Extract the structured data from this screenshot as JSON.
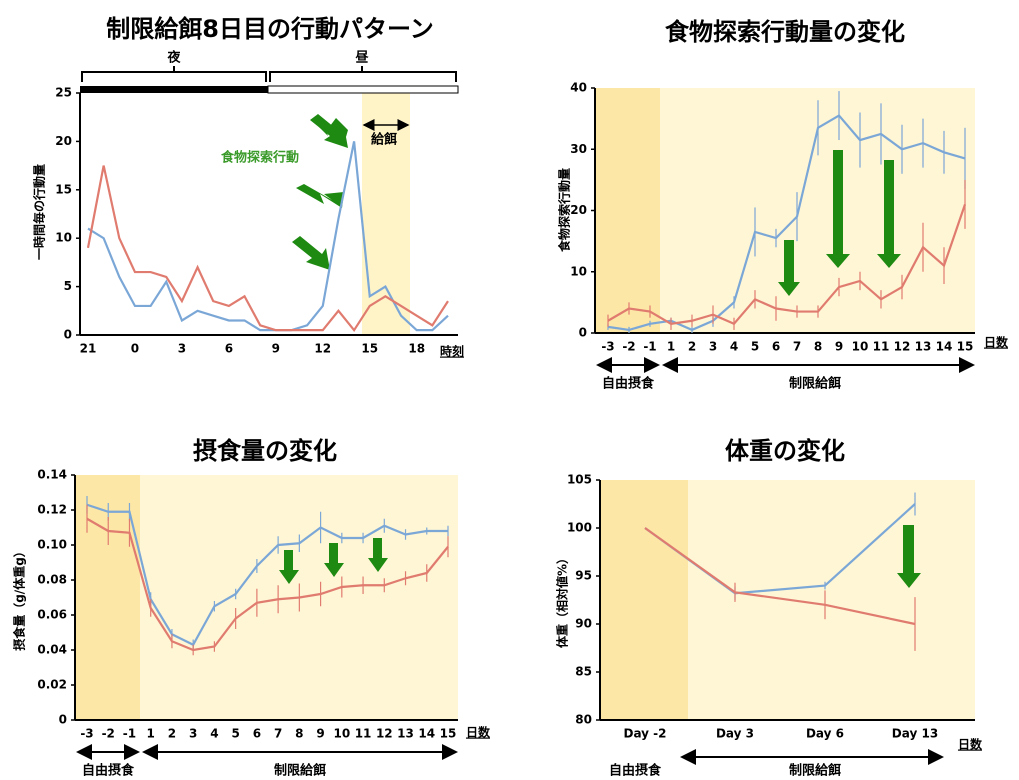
{
  "chart_data": [
    {
      "type": "line",
      "title": "制限給餌8日目の行動パターン",
      "ylabel": "一時間毎の行動量",
      "xlabel": "時刻",
      "categories": [
        "21",
        null,
        null,
        "0",
        null,
        null,
        "3",
        null,
        null,
        "6",
        null,
        null,
        "9",
        null,
        null,
        "12",
        null,
        null,
        "15",
        null,
        null,
        "18",
        null,
        null
      ],
      "ylim": [
        0,
        25
      ],
      "yticks": [
        0,
        5,
        10,
        15,
        20,
        25
      ],
      "annotations": {
        "night": "夜",
        "day": "昼",
        "feeding": "給餌",
        "foraging": "食物探索行動"
      },
      "series": [
        {
          "color": "#7ba7d7",
          "values": [
            11,
            10,
            6,
            3,
            3,
            5.5,
            1.5,
            2.5,
            2,
            1.5,
            1.5,
            0.5,
            0.5,
            0.5,
            1,
            3,
            12,
            20,
            4,
            5,
            2,
            0.5,
            0.5,
            2
          ]
        },
        {
          "color": "#e07b6f",
          "values": [
            9,
            17.5,
            10,
            6.5,
            6.5,
            6,
            3.5,
            7,
            3.5,
            3,
            4,
            1,
            0.5,
            0.5,
            0.5,
            0.5,
            2.5,
            0.5,
            3,
            4,
            3,
            2,
            1,
            3.5
          ]
        }
      ]
    },
    {
      "type": "line",
      "title": "食物探索行動量の変化",
      "ylabel": "食物探索行動量",
      "xlabel": "日数",
      "categories": [
        "-3",
        "-2",
        "-1",
        "1",
        "2",
        "3",
        "4",
        "5",
        "6",
        "7",
        "8",
        "9",
        "10",
        "11",
        "12",
        "13",
        "14",
        "15"
      ],
      "ylim": [
        0,
        40
      ],
      "yticks": [
        0,
        10,
        20,
        30,
        40
      ],
      "annotations": {
        "free": "自由摂食",
        "restricted": "制限給餌"
      },
      "series": [
        {
          "color": "#7ba7d7",
          "values": [
            1,
            0.5,
            1.5,
            2,
            0.5,
            2,
            5,
            16.5,
            15.5,
            19,
            33.5,
            35.5,
            31.5,
            32.5,
            30,
            31,
            29.5,
            28.5
          ],
          "errors": [
            0.5,
            0.5,
            0.5,
            0.5,
            0.5,
            1,
            1,
            4,
            1.5,
            4,
            4.5,
            4,
            4.5,
            5,
            4,
            4,
            3.5,
            5
          ]
        },
        {
          "color": "#e07b6f",
          "values": [
            2,
            4,
            3.5,
            1.5,
            2,
            3,
            1.5,
            5.5,
            4,
            3.5,
            3.5,
            7.5,
            8.5,
            5.5,
            7.5,
            14,
            11,
            21
          ],
          "errors": [
            1,
            1,
            1,
            1,
            1,
            1.5,
            1,
            1.5,
            2,
            1,
            1,
            1.5,
            1.5,
            1.5,
            2,
            4,
            3,
            4
          ]
        }
      ]
    },
    {
      "type": "line",
      "title": "摂食量の変化",
      "ylabel": "摂食量（g/体重g）",
      "xlabel": "日数",
      "categories": [
        "-3",
        "-2",
        "-1",
        "1",
        "2",
        "3",
        "4",
        "5",
        "6",
        "7",
        "8",
        "9",
        "10",
        "11",
        "12",
        "13",
        "14",
        "15"
      ],
      "ylim": [
        0,
        0.14
      ],
      "yticks": [
        0,
        0.02,
        0.04,
        0.06,
        0.08,
        {
          "value": 0.1,
          "label": "0.10"
        },
        0.12,
        0.14
      ],
      "annotations": {
        "free": "自由摂食",
        "restricted": "制限給餌"
      },
      "series": [
        {
          "color": "#7ba7d7",
          "values": [
            0.123,
            0.119,
            0.119,
            0.069,
            0.049,
            0.043,
            0.065,
            0.072,
            0.088,
            0.1,
            0.101,
            0.11,
            0.104,
            0.104,
            0.111,
            0.106,
            0.108,
            0.108
          ],
          "errors": [
            0.005,
            0.005,
            0.005,
            0.004,
            0.003,
            0.003,
            0.003,
            0.003,
            0.004,
            0.005,
            0.005,
            0.009,
            0.003,
            0.003,
            0.004,
            0.003,
            0.002,
            0.003
          ]
        },
        {
          "color": "#e07b6f",
          "values": [
            0.115,
            0.108,
            0.107,
            0.064,
            0.045,
            0.04,
            0.042,
            0.058,
            0.067,
            0.069,
            0.07,
            0.072,
            0.076,
            0.077,
            0.077,
            0.081,
            0.084,
            0.099
          ],
          "errors": [
            0.008,
            0.008,
            0.008,
            0.005,
            0.004,
            0.003,
            0.003,
            0.006,
            0.008,
            0.008,
            0.008,
            0.007,
            0.006,
            0.005,
            0.004,
            0.004,
            0.005,
            0.006
          ]
        }
      ]
    },
    {
      "type": "line",
      "title": "体重の変化",
      "ylabel": "体重（相対値%）",
      "xlabel": "日数",
      "categories": [
        "Day -2",
        "Day 3",
        "Day 6",
        "Day 13"
      ],
      "ylim": [
        80,
        105
      ],
      "yticks": [
        80,
        85,
        90,
        95,
        100,
        105
      ],
      "annotations": {
        "free": "自由摂食",
        "restricted": "制限給餌"
      },
      "series": [
        {
          "color": "#7ba7d7",
          "values": [
            100,
            93.2,
            94,
            102.5
          ],
          "errors": [
            0,
            0.7,
            0.4,
            1.2
          ]
        },
        {
          "color": "#e07b6f",
          "values": [
            100,
            93.3,
            92,
            90
          ],
          "errors": [
            0,
            1,
            1.5,
            2.8
          ]
        }
      ]
    }
  ]
}
